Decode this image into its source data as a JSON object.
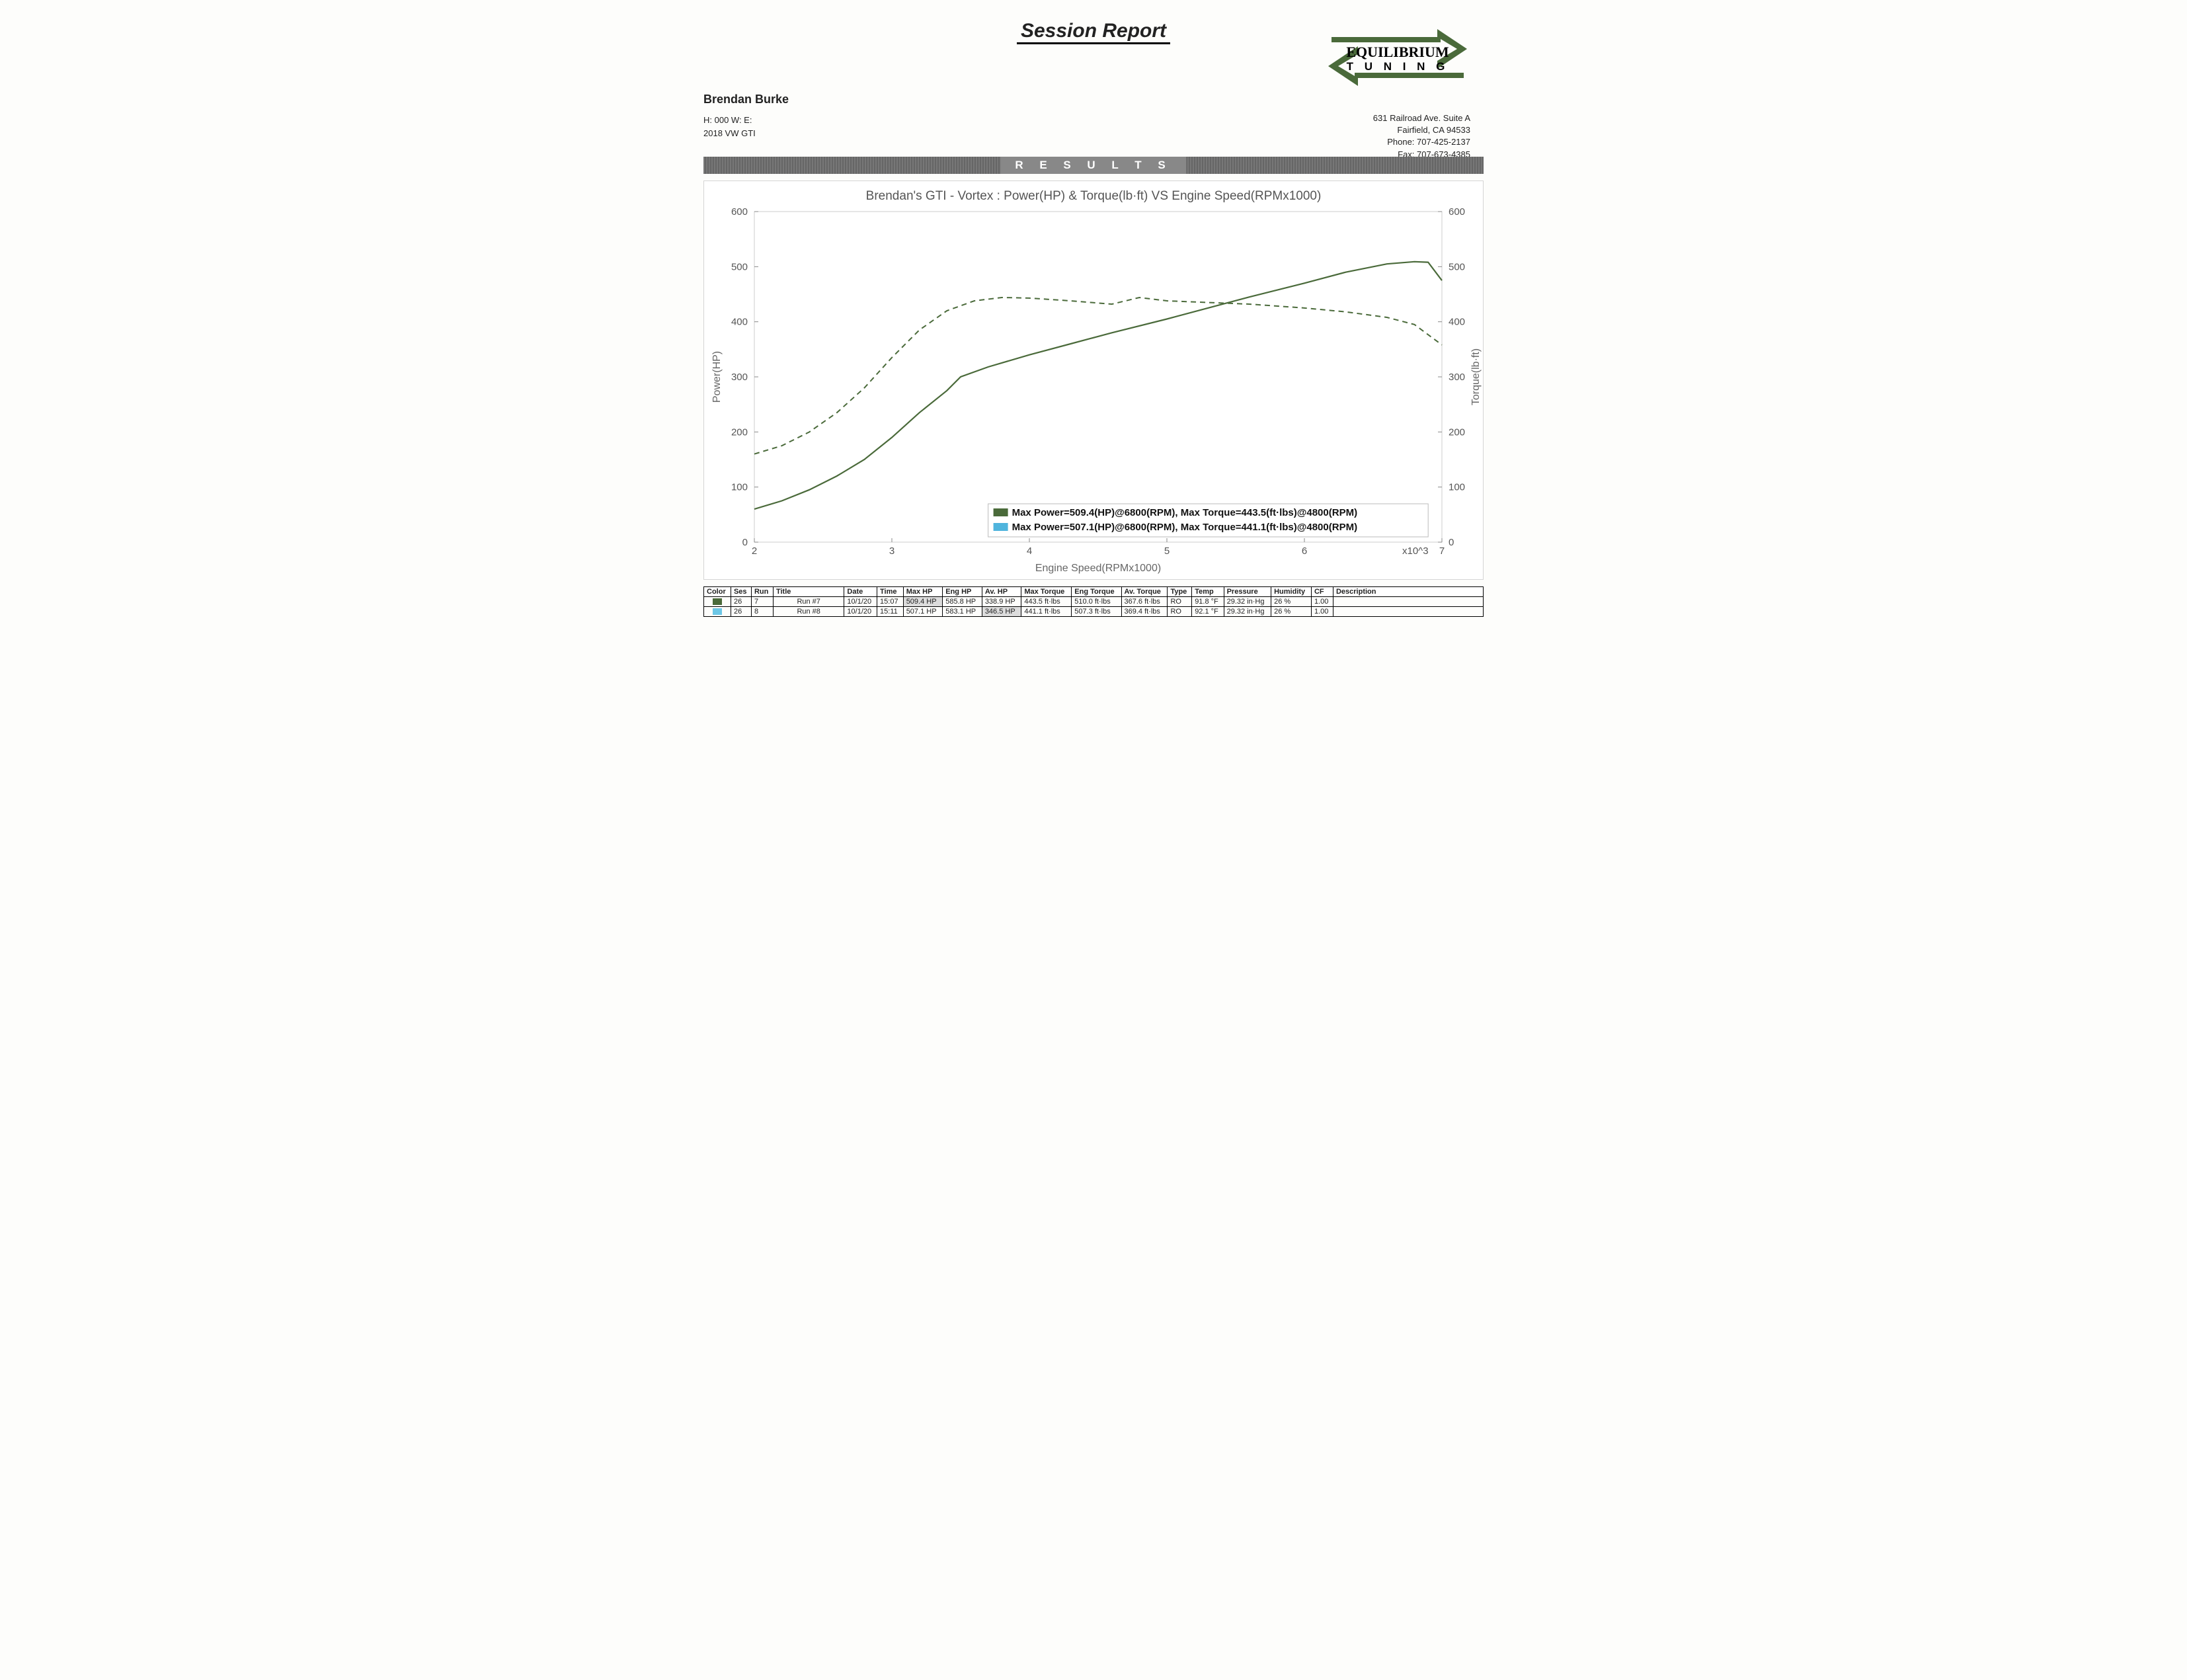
{
  "title": "Session Report",
  "logo": {
    "line1": "EQUILIBRIUM",
    "line2": "T U N I N G",
    "bar_color": "#4a6a3a"
  },
  "customer": {
    "name": "Brendan Burke",
    "line1": "H:  000   W:      E:",
    "line2": "2018 VW GTI"
  },
  "company": {
    "addr1": "631 Railroad Ave. Suite A",
    "addr2": "Fairfield, CA 94533",
    "phone": "Phone: 707-425-2137",
    "fax": "Fax:    707-673-4385"
  },
  "results_label": "R E S U L T S",
  "chart": {
    "title": "Brendan's GTI - Vortex : Power(HP) & Torque(lb·ft) VS Engine Speed(RPMx1000)",
    "xlabel": "Engine Speed(RPMx1000)",
    "ylabel_left": "Power(HP)",
    "ylabel_right": "Torque(lb·ft)",
    "x_ticks": [
      2,
      3,
      4,
      5,
      6,
      7
    ],
    "x_tick_suffix_index": 5,
    "x_tick_suffix": "x10^3",
    "y_ticks": [
      0,
      100,
      200,
      300,
      400,
      500,
      600
    ],
    "xlim": [
      2,
      7
    ],
    "ylim": [
      0,
      600
    ],
    "background": "#ffffff",
    "border_color": "#cccccc",
    "power_color": "#4a6a3a",
    "torque_color": "#4a6a3a",
    "power_line_width": 2.2,
    "torque_line_width": 2.0,
    "torque_dash": "8 6",
    "power_series": [
      [
        2.0,
        60
      ],
      [
        2.2,
        75
      ],
      [
        2.4,
        95
      ],
      [
        2.6,
        120
      ],
      [
        2.8,
        150
      ],
      [
        3.0,
        190
      ],
      [
        3.2,
        235
      ],
      [
        3.4,
        275
      ],
      [
        3.5,
        300
      ],
      [
        3.7,
        318
      ],
      [
        4.0,
        340
      ],
      [
        4.3,
        360
      ],
      [
        4.6,
        380
      ],
      [
        5.0,
        405
      ],
      [
        5.3,
        425
      ],
      [
        5.6,
        445
      ],
      [
        6.0,
        470
      ],
      [
        6.3,
        490
      ],
      [
        6.6,
        505
      ],
      [
        6.8,
        509
      ],
      [
        6.9,
        508
      ],
      [
        7.0,
        475
      ]
    ],
    "torque_series": [
      [
        2.0,
        160
      ],
      [
        2.2,
        175
      ],
      [
        2.4,
        200
      ],
      [
        2.6,
        235
      ],
      [
        2.8,
        280
      ],
      [
        3.0,
        335
      ],
      [
        3.2,
        385
      ],
      [
        3.4,
        420
      ],
      [
        3.6,
        438
      ],
      [
        3.8,
        444
      ],
      [
        4.0,
        443
      ],
      [
        4.3,
        438
      ],
      [
        4.6,
        432
      ],
      [
        4.8,
        444
      ],
      [
        5.0,
        438
      ],
      [
        5.3,
        435
      ],
      [
        5.6,
        432
      ],
      [
        6.0,
        425
      ],
      [
        6.3,
        418
      ],
      [
        6.6,
        408
      ],
      [
        6.8,
        395
      ],
      [
        7.0,
        358
      ]
    ],
    "legend": [
      {
        "color": "#4a6a3a",
        "text": "Max Power=509.4(HP)@6800(RPM), Max Torque=443.5(ft·lbs)@4800(RPM)"
      },
      {
        "color": "#4fb4dd",
        "text": "Max Power=507.1(HP)@6800(RPM), Max Torque=441.1(ft·lbs)@4800(RPM)"
      }
    ]
  },
  "table": {
    "columns": [
      "Color",
      "Ses",
      "Run",
      "Title",
      "Date",
      "Time",
      "Max HP",
      "Eng HP",
      "Av. HP",
      "Max Torque",
      "Eng Torque",
      "Av. Torque",
      "Type",
      "Temp",
      "Pressure",
      "Humidity",
      "CF",
      "Description"
    ],
    "rows": [
      {
        "color": "#4a6a3a",
        "ses": "26",
        "run": "7",
        "title": "Run #7",
        "date": "10/1/20",
        "time": "15:07",
        "maxhp": "509.4 HP",
        "maxhp_hl": true,
        "enghp": "585.8 HP",
        "avhp": "338.9 HP",
        "avhp_hl": false,
        "maxt": "443.5 ft·lbs",
        "engt": "510.0 ft·lbs",
        "avt": "367.6 ft·lbs",
        "type": "RO",
        "temp": "91.8 °F",
        "press": "29.32 in·Hg",
        "hum": "26 %",
        "cf": "1.00",
        "desc": ""
      },
      {
        "color": "#6cc7e6",
        "ses": "26",
        "run": "8",
        "title": "Run #8",
        "date": "10/1/20",
        "time": "15:11",
        "maxhp": "507.1 HP",
        "maxhp_hl": false,
        "enghp": "583.1 HP",
        "avhp": "346.5 HP",
        "avhp_hl": true,
        "maxt": "441.1 ft·lbs",
        "engt": "507.3 ft·lbs",
        "avt": "369.4 ft·lbs",
        "type": "RO",
        "temp": "92.1 °F",
        "press": "29.32 in·Hg",
        "hum": "26 %",
        "cf": "1.00",
        "desc": ""
      }
    ]
  }
}
